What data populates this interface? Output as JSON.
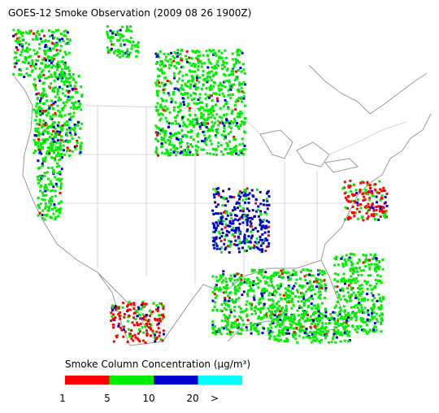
{
  "header": {
    "title": "GOES-12 Smoke Observation (2009 08 26  1900Z)"
  },
  "legend": {
    "label": "Smoke Column Concentration (μg/m³)",
    "colors": [
      "#ff0000",
      "#00ee00",
      "#0000cc",
      "#00ffff"
    ],
    "ticks": [
      "1",
      "5",
      "10",
      "20",
      ">"
    ]
  }
}
